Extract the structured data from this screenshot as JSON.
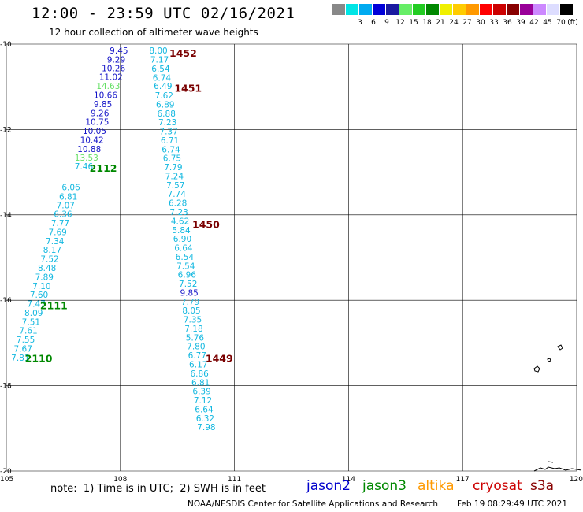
{
  "header": {
    "title": "12:00 - 23:59 UTC 02/16/2021",
    "subtitle": "12 hour collection of altimeter wave heights"
  },
  "color_scale": {
    "unit": "(ft)",
    "swatches": [
      {
        "label": "",
        "color": "#888888"
      },
      {
        "label": "3",
        "color": "#00e5e5"
      },
      {
        "label": "6",
        "color": "#00aaf0"
      },
      {
        "label": "9",
        "color": "#0000d8"
      },
      {
        "label": "12",
        "color": "#1a1aa0"
      },
      {
        "label": "15",
        "color": "#66ee66"
      },
      {
        "label": "18",
        "color": "#22cc22"
      },
      {
        "label": "21",
        "color": "#008800"
      },
      {
        "label": "24",
        "color": "#f0f000"
      },
      {
        "label": "27",
        "color": "#ffcc00"
      },
      {
        "label": "30",
        "color": "#ff9900"
      },
      {
        "label": "33",
        "color": "#ff0000"
      },
      {
        "label": "36",
        "color": "#cc0000"
      },
      {
        "label": "39",
        "color": "#880000"
      },
      {
        "label": "42",
        "color": "#990099"
      },
      {
        "label": "45",
        "color": "#cc88ff"
      },
      {
        "label": "70",
        "color": "#ddddff"
      },
      {
        "label": "",
        "color": "#000000"
      }
    ]
  },
  "chart_data": {
    "type": "scatter",
    "x_range": [
      105,
      120
    ],
    "y_range": [
      -20,
      -10
    ],
    "x_ticks": [
      "105",
      "108",
      "111",
      "114",
      "117",
      "120"
    ],
    "y_ticks": [
      "-10",
      "-12",
      "-14",
      "-16",
      "-18",
      "-20"
    ],
    "grid": true,
    "colors": {
      "cyan": "#14b8e0",
      "blue": "#1414c8",
      "lightgreen": "#66e066",
      "label_green": "#008800",
      "label_red": "#7a0000"
    },
    "series": [
      {
        "name": "jason2",
        "track": "2112",
        "points": [
          {
            "lon": 107.96,
            "lat": -10.15,
            "v": "9.45",
            "c": "blue"
          },
          {
            "lon": 107.89,
            "lat": -10.36,
            "v": "9.29",
            "c": "blue"
          },
          {
            "lon": 107.82,
            "lat": -10.56,
            "v": "10.26",
            "c": "blue"
          },
          {
            "lon": 107.75,
            "lat": -10.77,
            "v": "11.02",
            "c": "blue"
          },
          {
            "lon": 107.68,
            "lat": -10.98,
            "v": "14.63",
            "c": "lightgreen"
          },
          {
            "lon": 107.61,
            "lat": -11.19,
            "v": "10.66",
            "c": "blue"
          },
          {
            "lon": 107.54,
            "lat": -11.4,
            "v": "9.85",
            "c": "blue"
          },
          {
            "lon": 107.46,
            "lat": -11.61,
            "v": "9.26",
            "c": "blue"
          },
          {
            "lon": 107.39,
            "lat": -11.82,
            "v": "10.75",
            "c": "blue"
          },
          {
            "lon": 107.32,
            "lat": -12.03,
            "v": "10.05",
            "c": "blue"
          },
          {
            "lon": 107.25,
            "lat": -12.24,
            "v": "10.42",
            "c": "blue"
          },
          {
            "lon": 107.18,
            "lat": -12.45,
            "v": "10.88",
            "c": "blue"
          },
          {
            "lon": 107.11,
            "lat": -12.66,
            "v": "13.53",
            "c": "lightgreen"
          },
          {
            "lon": 107.04,
            "lat": -12.86,
            "v": "7.46",
            "c": "cyan"
          }
        ]
      },
      {
        "name": "jason2",
        "track": "2111",
        "points": [
          {
            "lon": 106.7,
            "lat": -13.35,
            "v": "6.06",
            "c": "cyan"
          },
          {
            "lon": 106.63,
            "lat": -13.57,
            "v": "6.81",
            "c": "cyan"
          },
          {
            "lon": 106.56,
            "lat": -13.77,
            "v": "7.07",
            "c": "cyan"
          },
          {
            "lon": 106.49,
            "lat": -13.98,
            "v": "6.36",
            "c": "cyan"
          },
          {
            "lon": 106.42,
            "lat": -14.19,
            "v": "7.77",
            "c": "cyan"
          },
          {
            "lon": 106.35,
            "lat": -14.4,
            "v": "7.69",
            "c": "cyan"
          },
          {
            "lon": 106.28,
            "lat": -14.61,
            "v": "7.34",
            "c": "cyan"
          },
          {
            "lon": 106.21,
            "lat": -14.82,
            "v": "8.17",
            "c": "cyan"
          },
          {
            "lon": 106.14,
            "lat": -15.03,
            "v": "7.52",
            "c": "cyan"
          },
          {
            "lon": 106.07,
            "lat": -15.24,
            "v": "8.48",
            "c": "cyan"
          },
          {
            "lon": 106.0,
            "lat": -15.45,
            "v": "7.89",
            "c": "cyan"
          },
          {
            "lon": 105.93,
            "lat": -15.66,
            "v": "7.10",
            "c": "cyan"
          },
          {
            "lon": 105.86,
            "lat": -15.87,
            "v": "7.60",
            "c": "cyan"
          },
          {
            "lon": 105.79,
            "lat": -16.08,
            "v": "7.47",
            "c": "cyan"
          }
        ]
      },
      {
        "name": "jason2",
        "track": "2110",
        "points": [
          {
            "lon": 105.72,
            "lat": -16.29,
            "v": "8.09",
            "c": "cyan"
          },
          {
            "lon": 105.65,
            "lat": -16.5,
            "v": "7.51",
            "c": "cyan"
          },
          {
            "lon": 105.58,
            "lat": -16.71,
            "v": "7.61",
            "c": "cyan"
          },
          {
            "lon": 105.51,
            "lat": -16.92,
            "v": "7.55",
            "c": "cyan"
          },
          {
            "lon": 105.44,
            "lat": -17.13,
            "v": "7.67",
            "c": "cyan"
          },
          {
            "lon": 105.37,
            "lat": -17.34,
            "v": "7.81",
            "c": "cyan"
          }
        ]
      },
      {
        "name": "jason2",
        "track": "1452",
        "points": [
          {
            "lon": 109.0,
            "lat": -10.15,
            "v": "8.00",
            "c": "cyan"
          },
          {
            "lon": 109.03,
            "lat": -10.36,
            "v": "7.17",
            "c": "cyan"
          },
          {
            "lon": 109.06,
            "lat": -10.57,
            "v": "6.54",
            "c": "cyan"
          },
          {
            "lon": 109.09,
            "lat": -10.78,
            "v": "6.74",
            "c": "cyan"
          }
        ]
      },
      {
        "name": "jason2",
        "track": "1451",
        "points": [
          {
            "lon": 109.12,
            "lat": -10.98,
            "v": "6.49",
            "c": "cyan"
          },
          {
            "lon": 109.15,
            "lat": -11.2,
            "v": "7.62",
            "c": "cyan"
          },
          {
            "lon": 109.18,
            "lat": -11.41,
            "v": "6.89",
            "c": "cyan"
          },
          {
            "lon": 109.21,
            "lat": -11.62,
            "v": "6.88",
            "c": "cyan"
          },
          {
            "lon": 109.24,
            "lat": -11.83,
            "v": "7.23",
            "c": "cyan"
          },
          {
            "lon": 109.27,
            "lat": -12.04,
            "v": "7.37",
            "c": "cyan"
          },
          {
            "lon": 109.3,
            "lat": -12.25,
            "v": "6.71",
            "c": "cyan"
          },
          {
            "lon": 109.33,
            "lat": -12.46,
            "v": "6.74",
            "c": "cyan"
          },
          {
            "lon": 109.36,
            "lat": -12.67,
            "v": "6.75",
            "c": "cyan"
          },
          {
            "lon": 109.39,
            "lat": -12.88,
            "v": "7.79",
            "c": "cyan"
          },
          {
            "lon": 109.42,
            "lat": -13.09,
            "v": "7.24",
            "c": "cyan"
          },
          {
            "lon": 109.45,
            "lat": -13.3,
            "v": "7.57",
            "c": "cyan"
          },
          {
            "lon": 109.48,
            "lat": -13.51,
            "v": "7.74",
            "c": "cyan"
          },
          {
            "lon": 109.51,
            "lat": -13.72,
            "v": "6.28",
            "c": "cyan"
          },
          {
            "lon": 109.54,
            "lat": -13.93,
            "v": "7.23",
            "c": "cyan"
          }
        ]
      },
      {
        "name": "jason2",
        "track": "1450",
        "points": [
          {
            "lon": 109.57,
            "lat": -14.14,
            "v": "4.62",
            "c": "cyan"
          },
          {
            "lon": 109.6,
            "lat": -14.35,
            "v": "5.84",
            "c": "cyan"
          },
          {
            "lon": 109.63,
            "lat": -14.56,
            "v": "6.90",
            "c": "cyan"
          },
          {
            "lon": 109.66,
            "lat": -14.77,
            "v": "6.64",
            "c": "cyan"
          },
          {
            "lon": 109.69,
            "lat": -14.98,
            "v": "6.54",
            "c": "cyan"
          },
          {
            "lon": 109.72,
            "lat": -15.19,
            "v": "7.54",
            "c": "cyan"
          },
          {
            "lon": 109.75,
            "lat": -15.4,
            "v": "6.96",
            "c": "cyan"
          },
          {
            "lon": 109.78,
            "lat": -15.61,
            "v": "7.52",
            "c": "cyan"
          },
          {
            "lon": 109.81,
            "lat": -15.82,
            "v": "9.85",
            "c": "blue"
          },
          {
            "lon": 109.84,
            "lat": -16.03,
            "v": "7.79",
            "c": "cyan"
          },
          {
            "lon": 109.87,
            "lat": -16.24,
            "v": "8.05",
            "c": "cyan"
          },
          {
            "lon": 109.9,
            "lat": -16.45,
            "v": "7.35",
            "c": "cyan"
          },
          {
            "lon": 109.93,
            "lat": -16.66,
            "v": "7.18",
            "c": "cyan"
          },
          {
            "lon": 109.96,
            "lat": -16.87,
            "v": "5.76",
            "c": "cyan"
          },
          {
            "lon": 109.99,
            "lat": -17.08,
            "v": "7.80",
            "c": "cyan"
          }
        ]
      },
      {
        "name": "jason2",
        "track": "1449",
        "points": [
          {
            "lon": 110.02,
            "lat": -17.29,
            "v": "6.77",
            "c": "cyan"
          },
          {
            "lon": 110.05,
            "lat": -17.5,
            "v": "6.17",
            "c": "cyan"
          },
          {
            "lon": 110.08,
            "lat": -17.71,
            "v": "6.86",
            "c": "cyan"
          },
          {
            "lon": 110.11,
            "lat": -17.92,
            "v": "6.81",
            "c": "cyan"
          },
          {
            "lon": 110.14,
            "lat": -18.13,
            "v": "6.39",
            "c": "cyan"
          },
          {
            "lon": 110.17,
            "lat": -18.34,
            "v": "7.12",
            "c": "cyan"
          },
          {
            "lon": 110.2,
            "lat": -18.55,
            "v": "6.64",
            "c": "cyan"
          },
          {
            "lon": 110.23,
            "lat": -18.76,
            "v": "6.32",
            "c": "cyan"
          },
          {
            "lon": 110.26,
            "lat": -18.97,
            "v": "7.98",
            "c": "cyan"
          }
        ]
      }
    ],
    "track_labels": [
      {
        "text": "1452",
        "lon": 109.65,
        "lat": -10.2,
        "c": "label_red"
      },
      {
        "text": "1451",
        "lon": 109.78,
        "lat": -11.02,
        "c": "label_red"
      },
      {
        "text": "2112",
        "lon": 107.55,
        "lat": -12.9,
        "c": "label_green"
      },
      {
        "text": "1450",
        "lon": 110.25,
        "lat": -14.22,
        "c": "label_red"
      },
      {
        "text": "2111",
        "lon": 106.25,
        "lat": -16.12,
        "c": "label_green"
      },
      {
        "text": "2110",
        "lon": 105.85,
        "lat": -17.35,
        "c": "label_green"
      },
      {
        "text": "1449",
        "lon": 110.6,
        "lat": -17.35,
        "c": "label_red"
      }
    ]
  },
  "footer": {
    "note": "note:  1) Time is in UTC;  2) SWH is in feet",
    "satellites": [
      {
        "label": "jason2",
        "color": "#0000cc"
      },
      {
        "label": "jason3",
        "color": "#008800"
      },
      {
        "label": "altika",
        "color": "#ff9900"
      },
      {
        "label": "cryosat",
        "color": "#cc0000"
      },
      {
        "label": "s3a",
        "color": "#880000"
      }
    ],
    "credit": "NOAA/NESDIS Center for Satellite Applications and Research",
    "timestamp": "Feb 19 08:29:49 UTC 2021"
  }
}
